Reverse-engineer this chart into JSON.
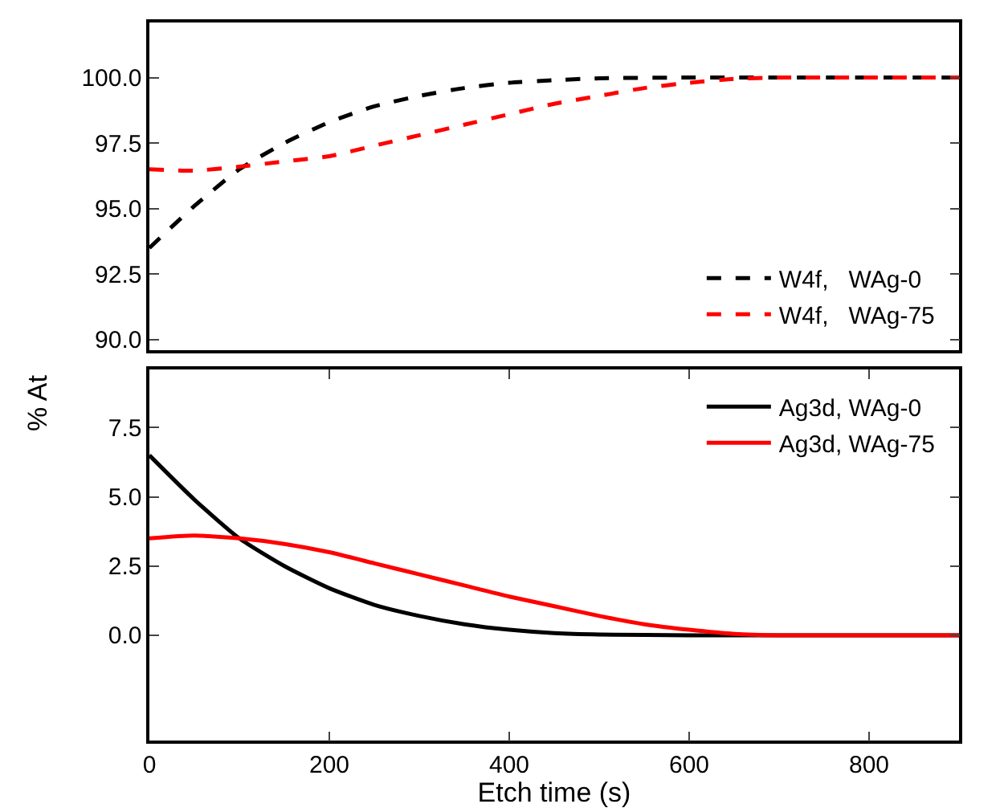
{
  "chart_data": [
    {
      "type": "line",
      "ylabel": "% At",
      "xlim": [
        0,
        900
      ],
      "ylim": [
        89.6,
        102.1
      ],
      "yticks": [
        {
          "value": 90,
          "label": "90.0"
        },
        92.5,
        {
          "value": 95,
          "label": "95.0"
        },
        97.5,
        {
          "value": 100,
          "label": "100.0"
        }
      ],
      "tick_labels": "y",
      "grid": false,
      "legend": "right",
      "marker": "none",
      "series": [
        {
          "name": "W4f,   WAg-0",
          "color": "#000000",
          "line_style": "dashed",
          "x": [
            0,
            50,
            100,
            150,
            200,
            250,
            300,
            350,
            400,
            450,
            500,
            600,
            700,
            800,
            900
          ],
          "values": [
            93.5,
            95.1,
            96.5,
            97.5,
            98.3,
            98.9,
            99.3,
            99.6,
            99.8,
            99.9,
            99.97,
            100,
            100,
            100,
            100
          ]
        },
        {
          "name": "W4f,   WAg-75",
          "color": "#ff0000",
          "line_style": "dashed",
          "x": [
            0,
            50,
            100,
            150,
            200,
            250,
            300,
            350,
            400,
            450,
            500,
            550,
            600,
            650,
            700,
            800,
            900
          ],
          "values": [
            96.5,
            96.45,
            96.6,
            96.8,
            97.0,
            97.4,
            97.8,
            98.2,
            98.6,
            99.0,
            99.3,
            99.6,
            99.8,
            99.95,
            100,
            100,
            100
          ]
        }
      ]
    },
    {
      "type": "line",
      "xlabel": "Etch time (s)",
      "xlim": [
        0,
        900
      ],
      "xticks": [
        0,
        200,
        400,
        600,
        800
      ],
      "ylim": [
        -3.8,
        9.6
      ],
      "yticks": [
        {
          "value": 0,
          "label": "0.0"
        },
        2.5,
        {
          "value": 5,
          "label": "5.0"
        },
        7.5
      ],
      "grid": false,
      "legend": "right",
      "marker": "none",
      "series": [
        {
          "name": "Ag3d, WAg-0",
          "color": "#000000",
          "line_style": "solid",
          "x": [
            0,
            50,
            100,
            150,
            200,
            250,
            300,
            350,
            400,
            450,
            500,
            600,
            700,
            800,
            900
          ],
          "values": [
            6.5,
            4.9,
            3.5,
            2.5,
            1.7,
            1.1,
            0.7,
            0.4,
            0.2,
            0.08,
            0.03,
            0,
            0,
            0,
            0
          ]
        },
        {
          "name": "Ag3d, WAg-75",
          "color": "#ff0000",
          "line_style": "solid",
          "x": [
            0,
            50,
            100,
            150,
            200,
            250,
            300,
            350,
            400,
            450,
            500,
            550,
            600,
            650,
            700,
            800,
            900
          ],
          "values": [
            3.5,
            3.6,
            3.5,
            3.3,
            3.0,
            2.6,
            2.2,
            1.8,
            1.4,
            1.05,
            0.7,
            0.4,
            0.2,
            0.05,
            0,
            0,
            0
          ]
        }
      ]
    }
  ]
}
